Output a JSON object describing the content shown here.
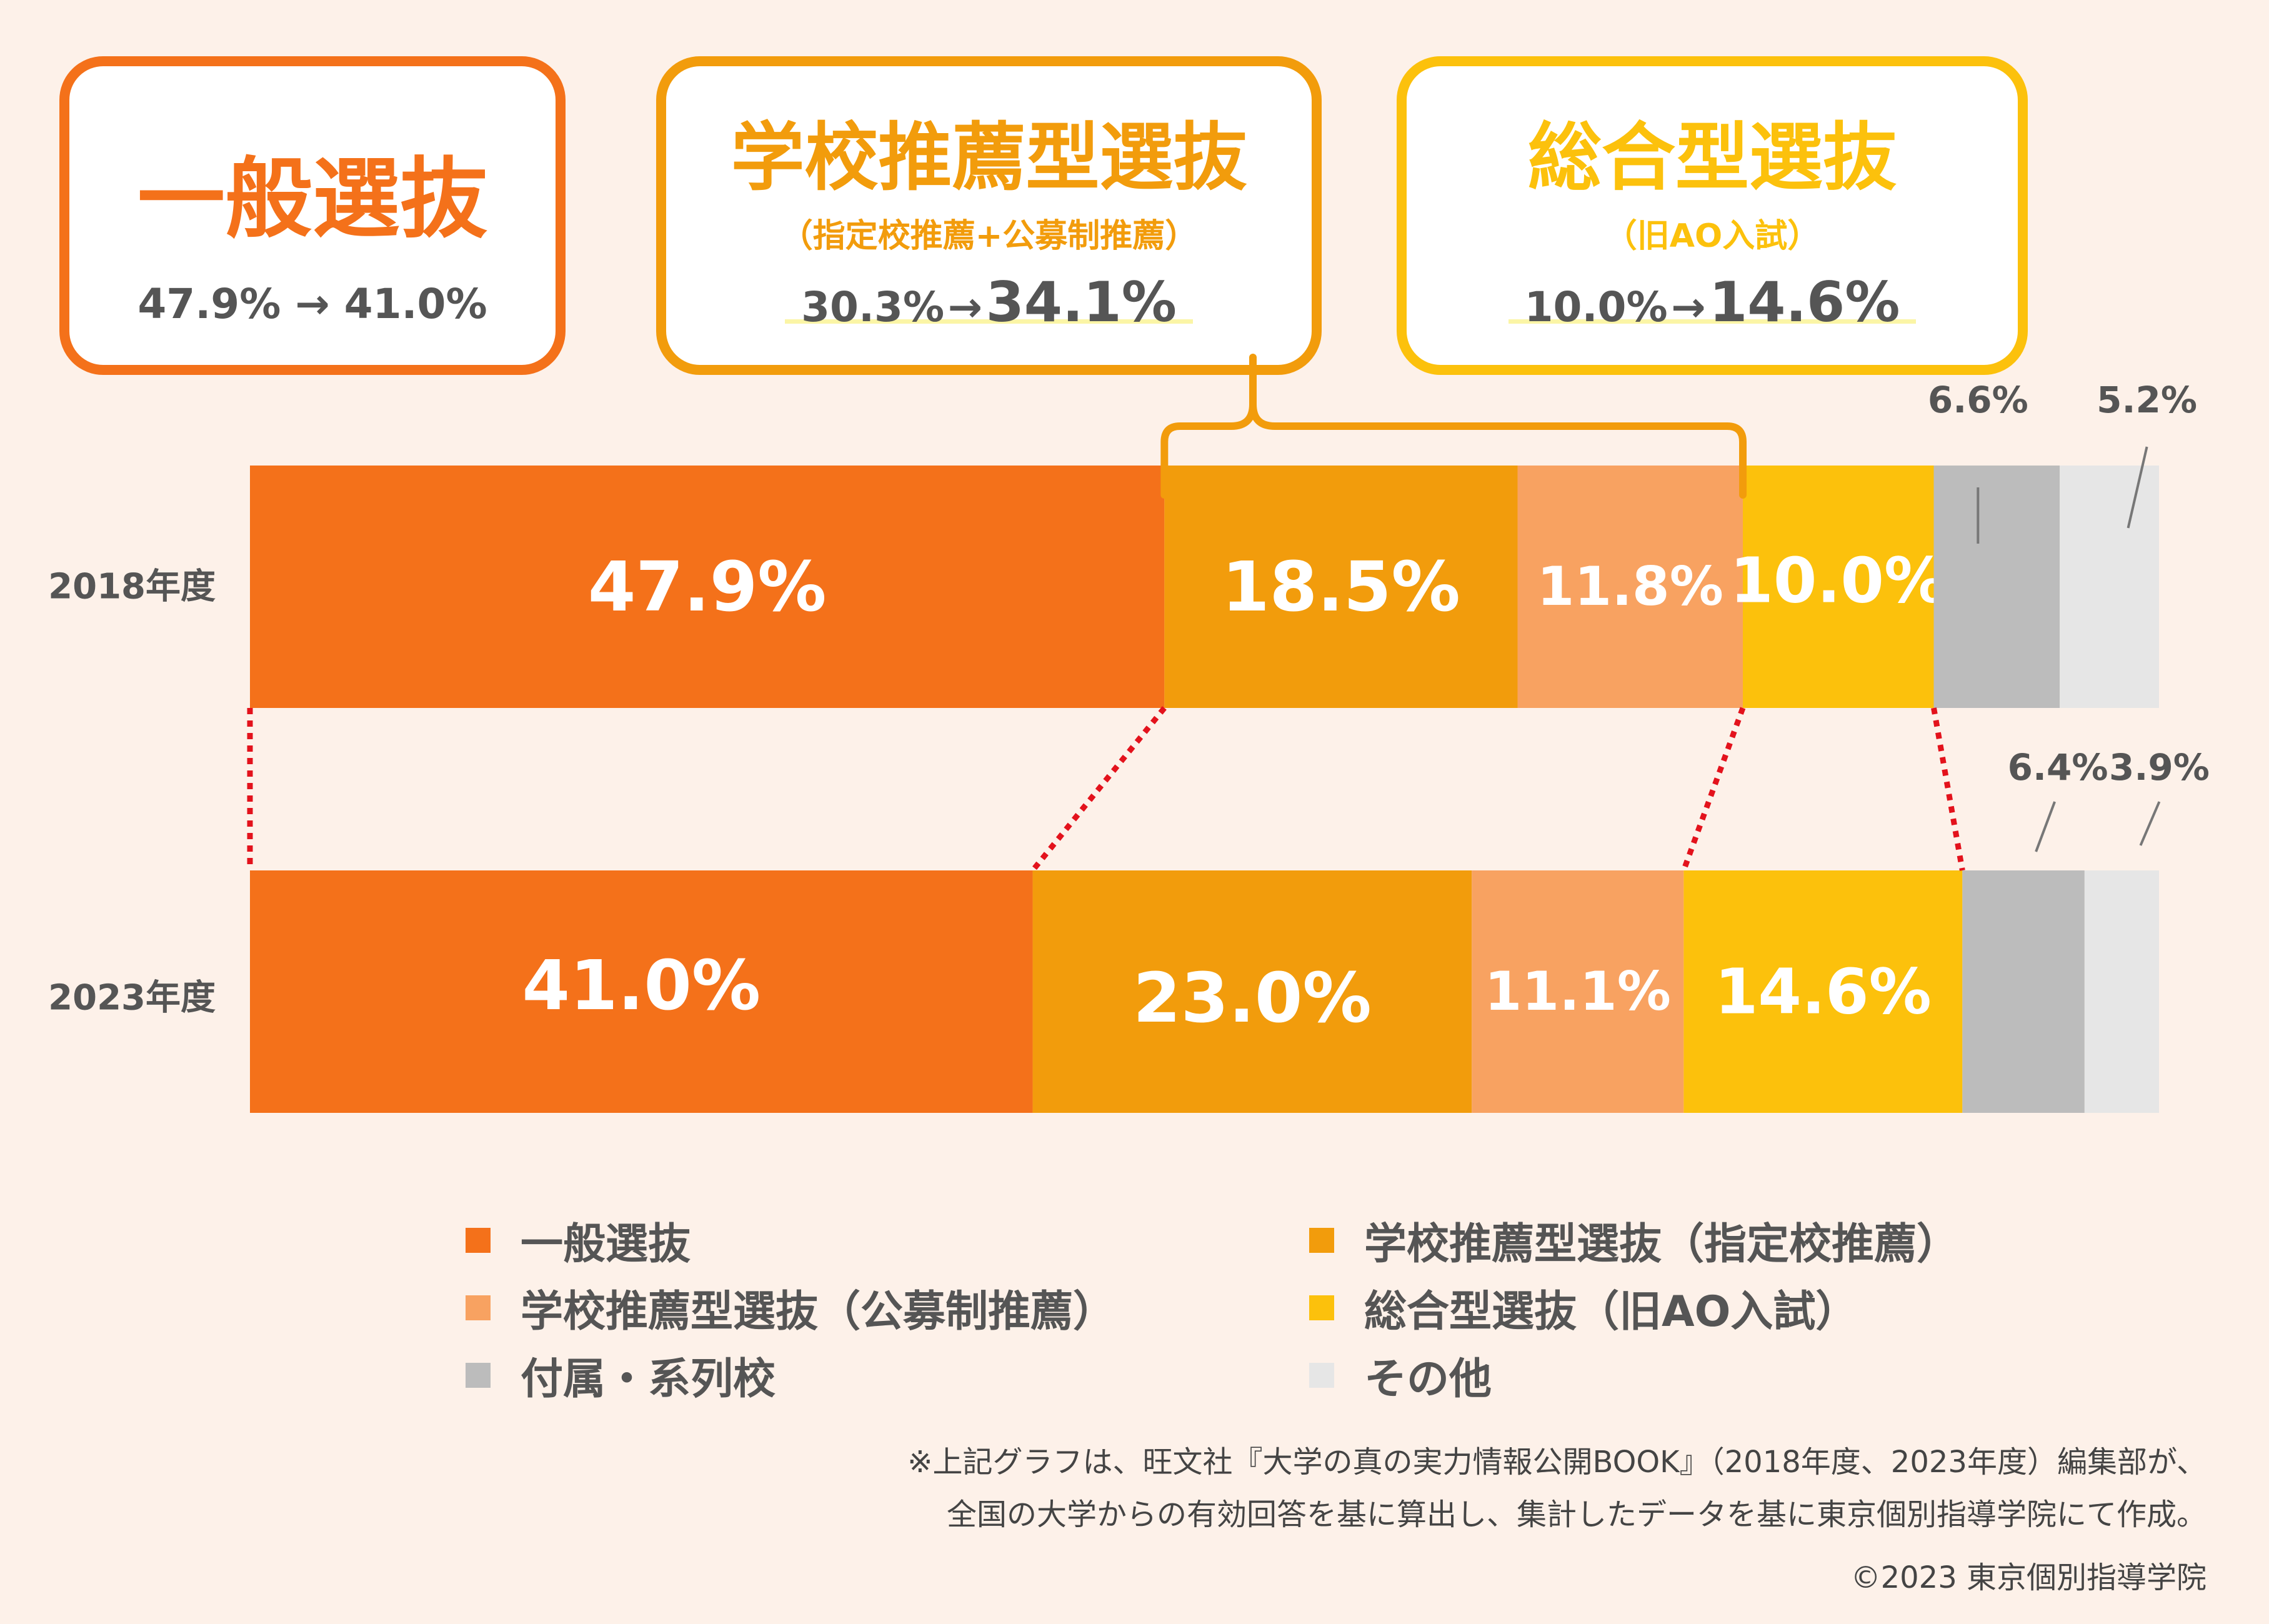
{
  "cards": [
    {
      "title": "一般選抜",
      "subtitle": "",
      "from": "47.9%",
      "arrow": "→",
      "to": "41.0%",
      "color": "#f4711a"
    },
    {
      "title": "学校推薦型選抜",
      "subtitle": "（指定校推薦+公募制推薦）",
      "from": "30.3%",
      "arrow": "→",
      "to": "34.1%",
      "color": "#f29c0c"
    },
    {
      "title": "総合型選抜",
      "subtitle": "（旧AO入試）",
      "from": "10.0%",
      "arrow": "→",
      "to": "14.6%",
      "color": "#fcc10c"
    }
  ],
  "chart_data": {
    "type": "bar",
    "orientation": "horizontal-stacked-100",
    "categories": [
      "2018年度",
      "2023年度"
    ],
    "series": [
      {
        "name": "一般選抜",
        "color": "#f4711a",
        "values": [
          47.9,
          41.0
        ],
        "labels": [
          "47.9%",
          "41.0%"
        ]
      },
      {
        "name": "学校推薦型選抜（指定校推薦）",
        "color": "#f29c0c",
        "values": [
          18.5,
          23.0
        ],
        "labels": [
          "18.5%",
          "23.0%"
        ]
      },
      {
        "name": "学校推薦型選抜（公募制推薦）",
        "color": "#f8a261",
        "values": [
          11.8,
          11.1
        ],
        "labels": [
          "11.8%",
          "11.1%"
        ]
      },
      {
        "name": "総合型選抜（旧AO入試）",
        "color": "#fcc10c",
        "values": [
          10.0,
          14.6
        ],
        "labels": [
          "10.0%",
          "14.6%"
        ]
      },
      {
        "name": "付属・系列校",
        "color": "#bcbcbc",
        "values": [
          6.6,
          6.4
        ],
        "labels": [
          "6.6%",
          "6.4%"
        ]
      },
      {
        "name": "その他",
        "color": "#e6e6e6",
        "values": [
          5.2,
          3.9
        ],
        "labels": [
          "5.2%",
          "3.9%"
        ]
      }
    ],
    "xlim": [
      0,
      100
    ],
    "legend_position": "bottom",
    "connector_color": "#e3121c"
  },
  "notes": {
    "line1": "※上記グラフは、旺文社『大学の真の実力情報公開BOOK』（2018年度、2023年度）編集部が、",
    "line2": "全国の大学からの有効回答を基に算出し、集計したデータを基に東京個別指導学院にて作成。",
    "copyright": "©2023 東京個別指導学院"
  }
}
